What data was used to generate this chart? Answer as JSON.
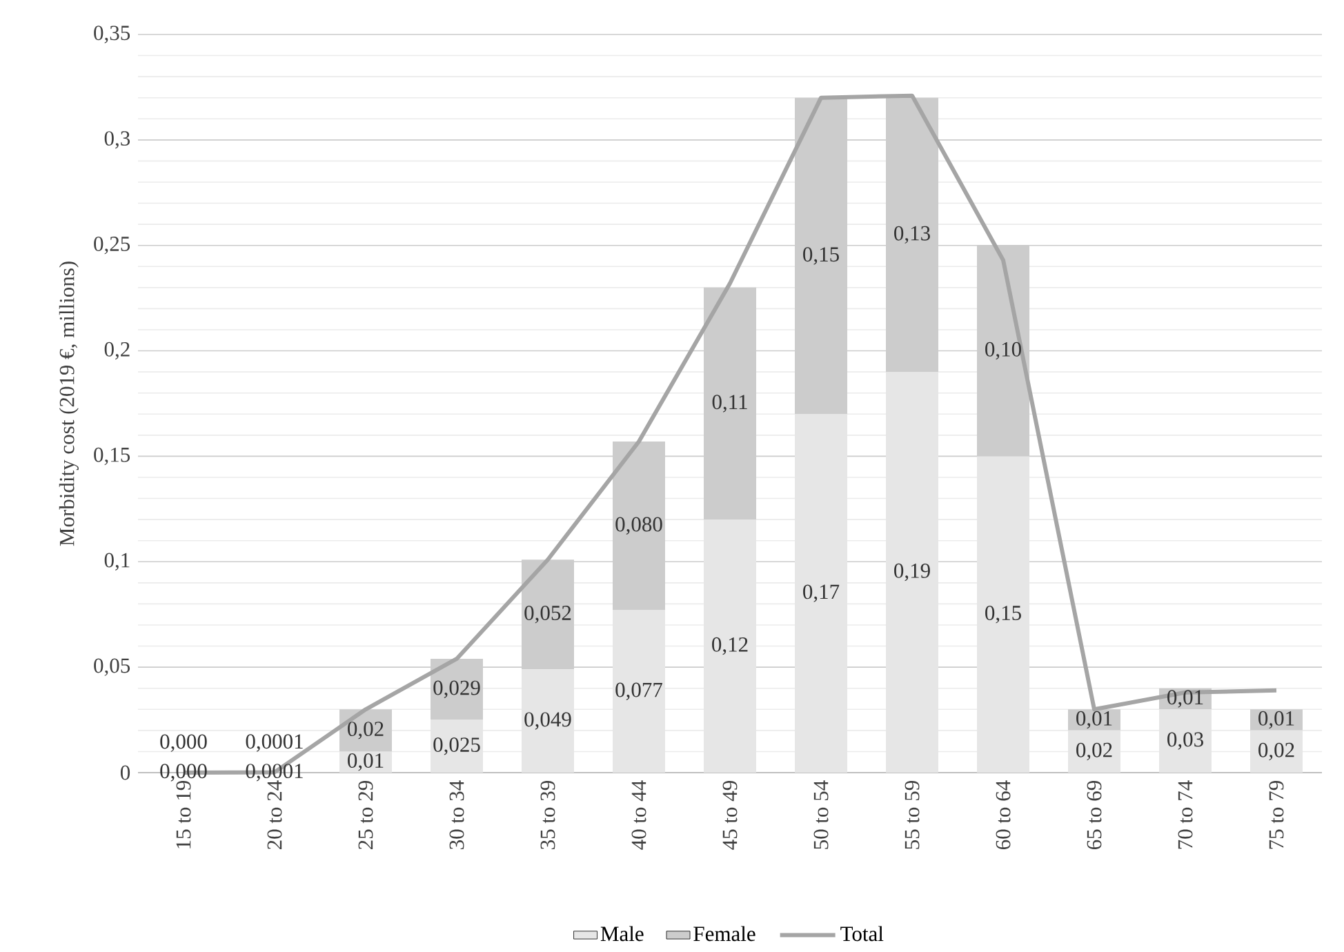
{
  "chart_data": {
    "type": "bar",
    "stacked": true,
    "ylabel": "Morbidity cost (2019 €, millions)",
    "categories": [
      "15 to 19",
      "20 to 24",
      "25 to 29",
      "30 to 34",
      "35 to 39",
      "40 to 44",
      "45 to 49",
      "50 to 54",
      "55 to 59",
      "60 to 64",
      "65 to 69",
      "70 to 74",
      "75 to 79"
    ],
    "series": [
      {
        "name": "Male",
        "color": "#e6e6e6",
        "values": [
          0.0,
          0.0001,
          0.01,
          0.025,
          0.049,
          0.077,
          0.12,
          0.17,
          0.19,
          0.15,
          0.02,
          0.03,
          0.02
        ],
        "value_labels": [
          "0,000",
          "0,0001",
          "0,01",
          "0,025",
          "0,049",
          "0,077",
          "0,12",
          "0,17",
          "0,19",
          "0,15",
          "0,02",
          "0,03",
          "0,02"
        ]
      },
      {
        "name": "Female",
        "color": "#cccccc",
        "values": [
          0.0,
          0.0001,
          0.02,
          0.029,
          0.052,
          0.08,
          0.11,
          0.15,
          0.13,
          0.1,
          0.01,
          0.01,
          0.01
        ],
        "value_labels": [
          "0,000",
          "0,0001",
          "0,02",
          "0,029",
          "0,052",
          "0,080",
          "0,11",
          "0,15",
          "0,13",
          "0,10",
          "0,01",
          "0,01",
          "0,01"
        ]
      },
      {
        "name": "Total",
        "type": "line",
        "color": "#a5a5a5",
        "values": [
          0.0,
          0.0002,
          0.03,
          0.054,
          0.101,
          0.157,
          0.232,
          0.32,
          0.321,
          0.243,
          0.03,
          0.038,
          0.039
        ]
      }
    ],
    "ylim": [
      0,
      0.35
    ],
    "yticks": [
      0,
      {
        "value": 0.05,
        "label": "0,05"
      },
      {
        "value": 0.1,
        "label": "0,1"
      },
      {
        "value": 0.15,
        "label": "0,15"
      },
      {
        "value": 0.2,
        "label": "0,2"
      },
      {
        "value": 0.25,
        "label": "0,25"
      },
      {
        "value": 0.3,
        "label": "0,3"
      },
      {
        "value": 0.35,
        "label": "0,35"
      }
    ],
    "grid": "y",
    "legend": "bottom",
    "marker": "none",
    "line_style": "solid"
  }
}
